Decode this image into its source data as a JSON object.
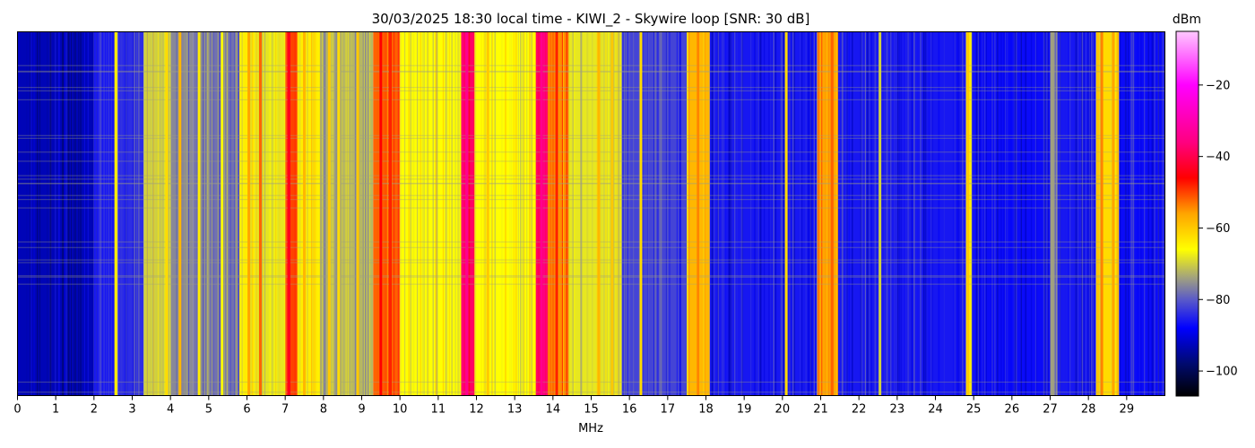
{
  "chart_data": {
    "type": "heatmap",
    "title": "30/03/2025 18:30 local time - KIWI_2 - Skywire loop [SNR: 30 dB]",
    "xlabel": "MHz",
    "ylabel": "",
    "xlim": [
      0,
      30
    ],
    "x_ticks": [
      "0",
      "1",
      "2",
      "3",
      "4",
      "5",
      "6",
      "7",
      "8",
      "9",
      "10",
      "11",
      "12",
      "13",
      "14",
      "15",
      "16",
      "17",
      "18",
      "19",
      "20",
      "21",
      "22",
      "23",
      "24",
      "25",
      "26",
      "27",
      "28",
      "29"
    ],
    "colorbar": {
      "label": "dBm",
      "range": [
        -107,
        -5
      ],
      "ticks": [
        -20,
        -40,
        -60,
        -80,
        -100
      ],
      "colormap": [
        {
          "value": -107,
          "color": "#000000"
        },
        {
          "value": -98,
          "color": "#000a6e"
        },
        {
          "value": -88,
          "color": "#0000ff"
        },
        {
          "value": -80,
          "color": "#5a5ac8"
        },
        {
          "value": -74,
          "color": "#a0a080"
        },
        {
          "value": -66,
          "color": "#ffff00"
        },
        {
          "value": -56,
          "color": "#ffa500"
        },
        {
          "value": -46,
          "color": "#ff0000"
        },
        {
          "value": -36,
          "color": "#ff0080"
        },
        {
          "value": -20,
          "color": "#ff00ff"
        },
        {
          "value": -5,
          "color": "#ffc8ff"
        }
      ]
    },
    "bands": [
      {
        "from": 0.0,
        "to": 2.0,
        "level": -93
      },
      {
        "from": 2.0,
        "to": 2.55,
        "level": -86
      },
      {
        "from": 2.55,
        "to": 2.62,
        "level": -70
      },
      {
        "from": 2.62,
        "to": 3.3,
        "level": -84
      },
      {
        "from": 3.3,
        "to": 4.0,
        "level": -70
      },
      {
        "from": 4.0,
        "to": 4.6,
        "level": -76
      },
      {
        "from": 4.6,
        "to": 5.8,
        "level": -78
      },
      {
        "from": 5.8,
        "to": 6.2,
        "level": -64
      },
      {
        "from": 6.2,
        "to": 7.0,
        "level": -68
      },
      {
        "from": 7.0,
        "to": 7.3,
        "level": -50
      },
      {
        "from": 7.3,
        "to": 7.9,
        "level": -64
      },
      {
        "from": 7.9,
        "to": 9.3,
        "level": -72
      },
      {
        "from": 9.3,
        "to": 10.0,
        "level": -52
      },
      {
        "from": 10.0,
        "to": 11.6,
        "level": -66
      },
      {
        "from": 11.6,
        "to": 11.95,
        "level": -38
      },
      {
        "from": 11.95,
        "to": 13.55,
        "level": -66
      },
      {
        "from": 13.55,
        "to": 13.85,
        "level": -38
      },
      {
        "from": 13.85,
        "to": 14.4,
        "level": -54
      },
      {
        "from": 14.4,
        "to": 15.8,
        "level": -68
      },
      {
        "from": 15.8,
        "to": 17.5,
        "level": -82
      },
      {
        "from": 17.5,
        "to": 18.1,
        "level": -58
      },
      {
        "from": 18.1,
        "to": 20.9,
        "level": -86
      },
      {
        "from": 20.9,
        "to": 21.45,
        "level": -56
      },
      {
        "from": 21.45,
        "to": 24.8,
        "level": -86
      },
      {
        "from": 24.8,
        "to": 24.95,
        "level": -64
      },
      {
        "from": 24.95,
        "to": 27.0,
        "level": -87
      },
      {
        "from": 27.0,
        "to": 27.2,
        "level": -74
      },
      {
        "from": 27.2,
        "to": 28.2,
        "level": -86
      },
      {
        "from": 28.2,
        "to": 28.8,
        "level": -62
      },
      {
        "from": 28.8,
        "to": 30.0,
        "level": -87
      }
    ],
    "carriers": [
      {
        "freq": 2.57,
        "level": -64
      },
      {
        "freq": 3.9,
        "level": -62
      },
      {
        "freq": 4.25,
        "level": -58
      },
      {
        "freq": 4.75,
        "level": -64
      },
      {
        "freq": 5.35,
        "level": -66
      },
      {
        "freq": 6.05,
        "level": -56
      },
      {
        "freq": 6.35,
        "level": -52
      },
      {
        "freq": 7.1,
        "level": -44
      },
      {
        "freq": 7.5,
        "level": -58
      },
      {
        "freq": 8.15,
        "level": -60
      },
      {
        "freq": 8.4,
        "level": -62
      },
      {
        "freq": 8.9,
        "level": -60
      },
      {
        "freq": 9.5,
        "level": -46
      },
      {
        "freq": 9.75,
        "level": -48
      },
      {
        "freq": 11.75,
        "level": -34
      },
      {
        "freq": 12.3,
        "level": -60
      },
      {
        "freq": 13.7,
        "level": -34
      },
      {
        "freq": 14.1,
        "level": -48
      },
      {
        "freq": 15.2,
        "level": -58
      },
      {
        "freq": 15.55,
        "level": -60
      },
      {
        "freq": 16.3,
        "level": -62
      },
      {
        "freq": 17.8,
        "level": -54
      },
      {
        "freq": 20.1,
        "level": -62
      },
      {
        "freq": 21.3,
        "level": -52
      },
      {
        "freq": 22.55,
        "level": -70
      },
      {
        "freq": 24.85,
        "level": -60
      },
      {
        "freq": 28.35,
        "level": -54
      },
      {
        "freq": 28.65,
        "level": -56
      }
    ]
  }
}
